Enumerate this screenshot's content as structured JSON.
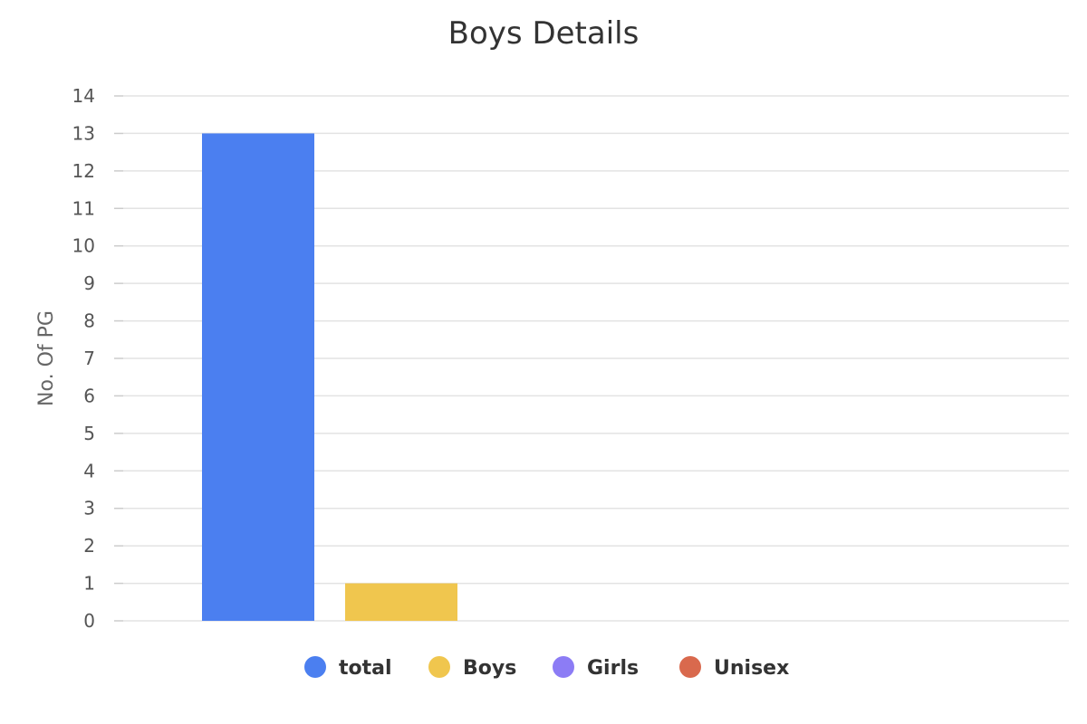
{
  "chart_data": {
    "type": "bar",
    "title": "Boys Details",
    "xlabel": "",
    "ylabel": "No. Of PG",
    "categories": [
      ""
    ],
    "ylim": [
      0,
      14
    ],
    "yticks": [
      0,
      1,
      2,
      3,
      4,
      5,
      6,
      7,
      8,
      9,
      10,
      11,
      12,
      13,
      14
    ],
    "grid": true,
    "legend_position": "bottom",
    "series": [
      {
        "name": "total",
        "values": [
          13
        ],
        "color": "#4b7ff0"
      },
      {
        "name": "Boys",
        "values": [
          1
        ],
        "color": "#f0c64e"
      },
      {
        "name": "Girls",
        "values": [
          0
        ],
        "color": "#8c7cf5"
      },
      {
        "name": "Unisex",
        "values": [
          0
        ],
        "color": "#d9694d"
      }
    ]
  }
}
